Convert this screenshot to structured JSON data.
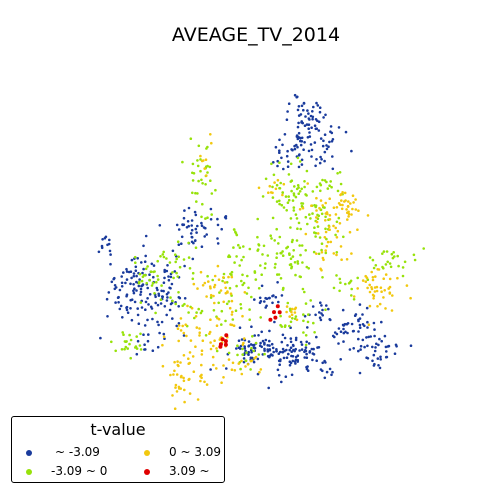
{
  "title": "AVEAGE_TV_2014",
  "legend": {
    "title": "t-value",
    "items": [
      {
        "label": "~ -3.09",
        "color": "#1a3b9c"
      },
      {
        "label": "-3.09 ~ 0",
        "color": "#97e20a"
      },
      {
        "label": "0 ~ 3.09",
        "color": "#f2c80f"
      },
      {
        "label": "3.09 ~",
        "color": "#e00000"
      }
    ]
  },
  "colors": {
    "neg_significant": "#1a3b9c",
    "neg": "#97e20a",
    "pos": "#f2c80f",
    "pos_significant": "#e00000"
  }
}
